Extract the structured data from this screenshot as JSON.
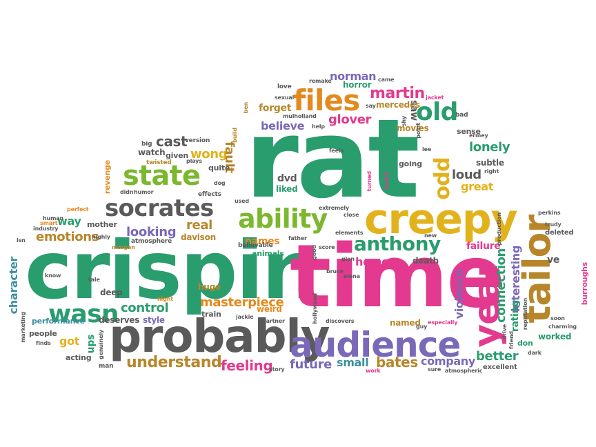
{
  "palette": {
    "green": "#2a9d6e",
    "pink": "#e3398e",
    "gray": "#5a5a5a",
    "orange": "#e38a1e",
    "purple": "#7a68b8",
    "yellow": "#e2b21c",
    "lime": "#7cb82f",
    "brown": "#b8862a",
    "teal": "#3c8fa0",
    "red": "#e0453a"
  },
  "words": {
    "rat": "rat",
    "crispin": "crispin",
    "time": "time",
    "probably": "probably",
    "audience": "audience",
    "creepy": "creepy",
    "tailor": "tailor",
    "year": "year",
    "files": "files",
    "socrates": "socrates",
    "state": "state",
    "ability": "ability",
    "anthony": "anthony",
    "wasn": "wasn",
    "old": "old",
    "odd": "odd",
    "martin": "martin",
    "understand": "understand",
    "masterpiece": "masterpiece",
    "feeling": "feeling",
    "future": "future",
    "bates": "bates",
    "company": "company",
    "better": "better",
    "emotions": "emotions",
    "looking": "looking",
    "control": "control",
    "cast": "cast",
    "wong": "wong",
    "glover": "glover",
    "norman": "norman",
    "horror": "horror",
    "believe": "believe",
    "lonely": "lonely",
    "loud": "loud",
    "great": "great",
    "connection": "connection",
    "interesting": "interesting",
    "violence": "violence",
    "rating": "rating",
    "fault": "fault",
    "real": "real",
    "way": "way",
    "home": "home",
    "names": "names",
    "character": "character",
    "got": "got",
    "ups": "ups",
    "ve": "ve",
    "failure": "failure",
    "subtle": "subtle",
    "small": "small",
    "dvd": "dvd",
    "liked": "liked",
    "saw": "saw",
    "death": "death",
    "forget": "forget",
    "mercedes": "mercedes",
    "movies": "movies",
    "sense": "sense",
    "going": "going",
    "huge": "huge",
    "weird": "weird",
    "named": "named",
    "deserves": "deserves",
    "style": "style",
    "performance": "performance",
    "acting": "acting",
    "people": "people",
    "watch": "watch",
    "given": "given",
    "quite": "quite",
    "revenge": "revenge",
    "mother": "mother",
    "davison": "davison",
    "deep": "deep",
    "train": "train",
    "worked": "worked",
    "don": "don",
    "burroughs": "burroughs",
    "deleted": "deleted",
    "excellent": "excellent",
    "animals": "animals",
    "believable": "believable",
    "atmosphere": "atmosphere",
    "effects": "effects",
    "twisted": "twisted",
    "plays": "plays",
    "version": "version",
    "big": "big",
    "perfect": "perfect",
    "smart": "smart",
    "industry": "industry",
    "isn": "isn",
    "know": "know",
    "marketing": "marketing",
    "finds": "finds",
    "man": "man",
    "genuinely": "genuinely",
    "tale": "tale",
    "night": "night",
    "morgan": "morgan",
    "highly": "highly",
    "human": "human",
    "didn": "didn",
    "humor": "humor",
    "dog": "dog",
    "used": "used",
    "love": "love",
    "sexual": "sexual",
    "ben": "ben",
    "mulholland": "mulholland",
    "remake": "remake",
    "help": "help",
    "build": "build",
    "say": "say",
    "came": "came",
    "shy": "shy",
    "jacket": "jacket",
    "point": "point",
    "bad": "bad",
    "ermey": "ermey",
    "lee": "lee",
    "feels": "feels",
    "turned": "turned",
    "metal": "metal",
    "right": "right",
    "extremely": "extremely",
    "close": "close",
    "elements": "elements",
    "new": "new",
    "father": "father",
    "score": "score",
    "good": "good",
    "glen": "glen",
    "bruce": "bruce",
    "elena": "elena",
    "hollywood": "hollywood",
    "jackie": "jackie",
    "partner": "partner",
    "discovers": "discovers",
    "especially": "especially",
    "guy": "guy",
    "story": "story",
    "work": "work",
    "sure": "sure",
    "atmospheric": "atmospheric",
    "dark": "dark",
    "production": "production",
    "reputation": "reputation",
    "drive": "drive",
    "friend": "friend",
    "soon": "soon",
    "charming": "charming",
    "perkins": "perkins",
    "trudy": "trudy"
  }
}
